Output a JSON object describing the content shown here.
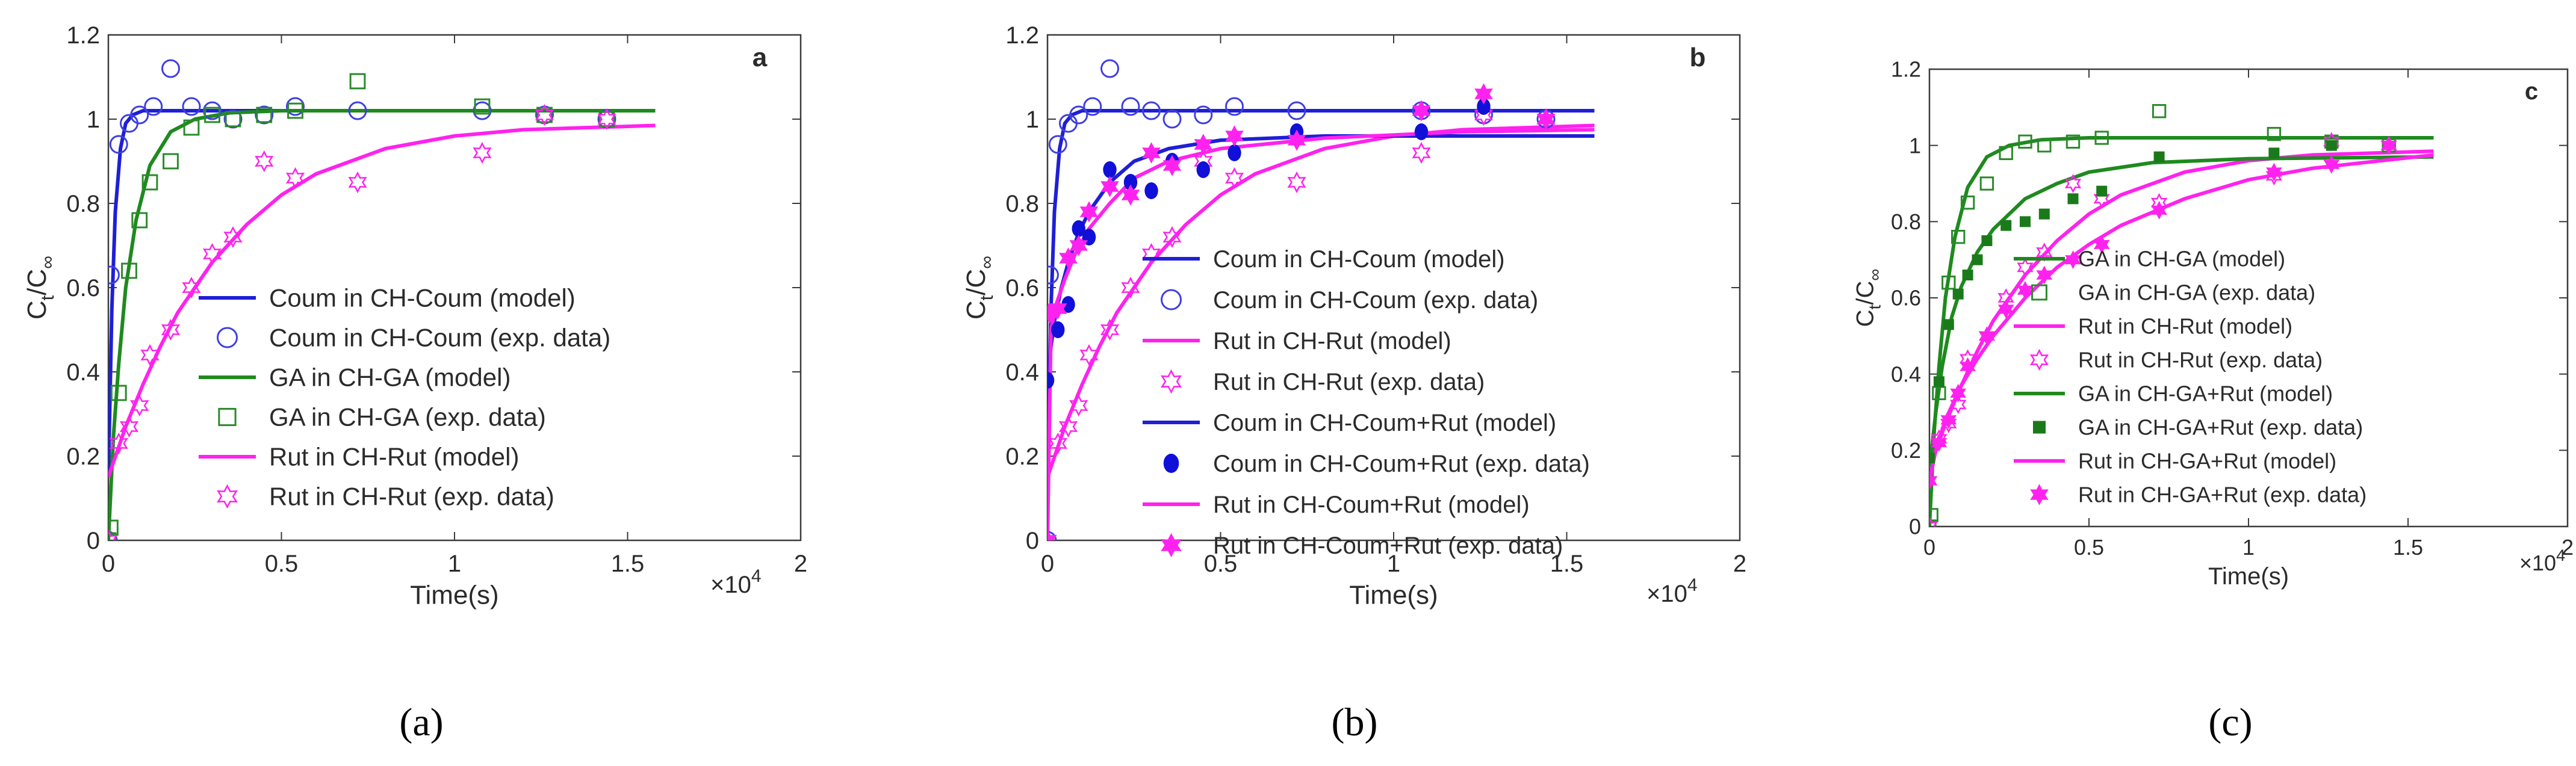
{
  "chart_data": [
    {
      "type": "line",
      "panel_label": "a",
      "caption": "(a)",
      "xlabel": "Time(s)",
      "ylabel": "C",
      "ylabel_sub_t": "t",
      "ylabel_slash": "/C",
      "ylabel_sub_inf": "∞",
      "x_multiplier": "×10",
      "x_multiplier_exp": "4",
      "xlim": [
        0,
        20000
      ],
      "ylim": [
        0,
        1.2
      ],
      "xticks": [
        0,
        5000,
        10000,
        15000,
        20000
      ],
      "xtick_labels": [
        "0",
        "0.5",
        "1",
        "1.5",
        "2"
      ],
      "yticks": [
        0,
        0.2,
        0.4,
        0.6,
        0.8,
        1.0,
        1.2
      ],
      "ytick_labels": [
        "0",
        "0.2",
        "0.4",
        "0.6",
        "0.8",
        "1",
        "1.2"
      ],
      "grid": false,
      "legend_position": "center-right",
      "series": [
        {
          "name": "Coum in CH-Coum (model)",
          "kind": "line",
          "color": "#1f1fd6",
          "x": [
            0,
            100,
            200,
            350,
            500,
            700,
            1000,
            1500,
            2500,
            5000,
            10000,
            15800
          ],
          "y": [
            0.15,
            0.55,
            0.78,
            0.93,
            0.99,
            1.01,
            1.02,
            1.02,
            1.02,
            1.02,
            1.02,
            1.02
          ]
        },
        {
          "name": "Coum in CH-Coum (exp. data)",
          "kind": "marker",
          "marker": "circle",
          "color": "#3f3fe0",
          "x": [
            0,
            60,
            300,
            600,
            900,
            1300,
            1800,
            2400,
            3000,
            3600,
            4500,
            5400,
            7200,
            10800,
            12600,
            14400
          ],
          "y": [
            0,
            0.63,
            0.94,
            0.99,
            1.01,
            1.03,
            1.12,
            1.03,
            1.02,
            1.0,
            1.01,
            1.03,
            1.02,
            1.02,
            1.01,
            1.0
          ]
        },
        {
          "name": "GA in CH-GA (model)",
          "kind": "line",
          "color": "#1e8a1e",
          "x": [
            0,
            150,
            300,
            500,
            800,
            1200,
            1800,
            2500,
            3500,
            5000,
            8000,
            15800
          ],
          "y": [
            0.0,
            0.25,
            0.42,
            0.6,
            0.76,
            0.89,
            0.97,
            1.0,
            1.015,
            1.02,
            1.02,
            1.02
          ]
        },
        {
          "name": "GA in CH-GA (exp. data)",
          "kind": "marker",
          "marker": "square",
          "color": "#2a8a2a",
          "x": [
            0,
            60,
            300,
            600,
            900,
            1200,
            1800,
            2400,
            3000,
            3600,
            4500,
            5400,
            7200,
            10800,
            12600,
            14400
          ],
          "y": [
            0.0,
            0.03,
            0.35,
            0.64,
            0.76,
            0.85,
            0.9,
            0.98,
            1.01,
            1.0,
            1.01,
            1.02,
            1.09,
            1.03,
            1.01,
            1.0
          ]
        },
        {
          "name": "Rut in CH-Rut (model)",
          "kind": "line",
          "color": "#ff22ee",
          "x": [
            0,
            500,
            1000,
            1500,
            2000,
            3000,
            4000,
            5000,
            6000,
            8000,
            10000,
            12000,
            15800
          ],
          "y": [
            0.15,
            0.27,
            0.37,
            0.46,
            0.54,
            0.66,
            0.75,
            0.82,
            0.87,
            0.93,
            0.96,
            0.975,
            0.985
          ]
        },
        {
          "name": "Rut in CH-Rut (exp. data)",
          "kind": "marker",
          "marker": "star",
          "color": "#ff22ee",
          "x": [
            0,
            300,
            600,
            900,
            1200,
            1800,
            2400,
            3000,
            3600,
            4500,
            5400,
            7200,
            10800,
            12600,
            14400
          ],
          "y": [
            0.0,
            0.23,
            0.27,
            0.32,
            0.44,
            0.5,
            0.6,
            0.68,
            0.72,
            0.9,
            0.86,
            0.85,
            0.92,
            1.01,
            1.0
          ]
        }
      ]
    },
    {
      "type": "line",
      "panel_label": "b",
      "caption": "(b)",
      "xlabel": "Time(s)",
      "ylabel": "C",
      "ylabel_sub_t": "t",
      "ylabel_slash": "/C",
      "ylabel_sub_inf": "∞",
      "x_multiplier": "×10",
      "x_multiplier_exp": "4",
      "xlim": [
        0,
        20000
      ],
      "ylim": [
        0,
        1.2
      ],
      "xticks": [
        0,
        5000,
        10000,
        15000,
        20000
      ],
      "xtick_labels": [
        "0",
        "0.5",
        "1",
        "1.5",
        "2"
      ],
      "yticks": [
        0,
        0.2,
        0.4,
        0.6,
        0.8,
        1.0,
        1.2
      ],
      "ytick_labels": [
        "0",
        "0.2",
        "0.4",
        "0.6",
        "0.8",
        "1",
        "1.2"
      ],
      "grid": false,
      "legend_position": "center-right",
      "series": [
        {
          "name": "Coum in CH-Coum (model)",
          "kind": "line",
          "color": "#1f1fd6",
          "x": [
            0,
            100,
            200,
            350,
            500,
            700,
            1000,
            1500,
            2500,
            5000,
            10000,
            15800
          ],
          "y": [
            0.15,
            0.55,
            0.78,
            0.93,
            0.99,
            1.01,
            1.02,
            1.02,
            1.02,
            1.02,
            1.02,
            1.02
          ]
        },
        {
          "name": "Coum in CH-Coum (exp. data)",
          "kind": "marker",
          "marker": "circle",
          "color": "#3f3fe0",
          "x": [
            0,
            60,
            300,
            600,
            900,
            1300,
            1800,
            2400,
            3000,
            3600,
            4500,
            5400,
            7200,
            10800,
            12600,
            14400
          ],
          "y": [
            0,
            0.63,
            0.94,
            0.99,
            1.01,
            1.03,
            1.12,
            1.03,
            1.02,
            1.0,
            1.01,
            1.03,
            1.02,
            1.02,
            1.01,
            1.0
          ]
        },
        {
          "name": "Rut in CH-Rut (model)",
          "kind": "line",
          "color": "#ff22ee",
          "x": [
            0,
            500,
            1000,
            1500,
            2000,
            3000,
            4000,
            5000,
            6000,
            8000,
            10000,
            12000,
            15800
          ],
          "y": [
            0.15,
            0.27,
            0.37,
            0.46,
            0.54,
            0.66,
            0.75,
            0.82,
            0.87,
            0.93,
            0.96,
            0.975,
            0.985
          ]
        },
        {
          "name": "Rut in CH-Rut (exp. data)",
          "kind": "marker",
          "marker": "star",
          "color": "#ff22ee",
          "x": [
            0,
            300,
            600,
            900,
            1200,
            1800,
            2400,
            3000,
            3600,
            4500,
            5400,
            7200,
            10800,
            12600,
            14400
          ],
          "y": [
            0.0,
            0.23,
            0.27,
            0.32,
            0.44,
            0.5,
            0.6,
            0.68,
            0.72,
            0.9,
            0.86,
            0.85,
            0.92,
            1.01,
            1.0
          ]
        },
        {
          "name": "Coum in CH-Coum+Rut (model)",
          "kind": "line",
          "color": "#1f1fd6",
          "x": [
            0,
            100,
            200,
            400,
            600,
            900,
            1200,
            1800,
            2500,
            3500,
            5000,
            8000,
            15800
          ],
          "y": [
            0.38,
            0.46,
            0.52,
            0.6,
            0.66,
            0.73,
            0.78,
            0.85,
            0.9,
            0.93,
            0.95,
            0.96,
            0.96
          ]
        },
        {
          "name": "Coum in CH-Coum+Rut (exp. data)",
          "kind": "marker",
          "marker": "dot",
          "color": "#1010d8",
          "x": [
            0,
            300,
            600,
            900,
            1200,
            1800,
            2400,
            3000,
            3600,
            4500,
            5400,
            7200,
            10800,
            12600
          ],
          "y": [
            0.38,
            0.5,
            0.56,
            0.74,
            0.72,
            0.88,
            0.85,
            0.83,
            0.9,
            0.88,
            0.92,
            0.97,
            0.97,
            1.03
          ]
        },
        {
          "name": "Rut in CH-Coum+Rut (model)",
          "kind": "line",
          "color": "#ff22ee",
          "x": [
            0,
            100,
            250,
            500,
            800,
            1200,
            1800,
            2500,
            3500,
            5000,
            8000,
            12000,
            15800
          ],
          "y": [
            0.0,
            0.5,
            0.56,
            0.62,
            0.68,
            0.74,
            0.8,
            0.86,
            0.9,
            0.93,
            0.955,
            0.97,
            0.975
          ]
        },
        {
          "name": "Rut in CH-Coum+Rut (exp. data)",
          "kind": "marker",
          "marker": "filledstar",
          "color": "#ff22ee",
          "x": [
            0,
            60,
            300,
            600,
            900,
            1200,
            1800,
            2400,
            3000,
            3600,
            4500,
            5400,
            7200,
            10800,
            12600,
            14400
          ],
          "y": [
            0.0,
            0.54,
            0.55,
            0.67,
            0.7,
            0.78,
            0.84,
            0.82,
            0.92,
            0.89,
            0.94,
            0.96,
            0.95,
            1.02,
            1.06,
            1.0
          ]
        }
      ]
    },
    {
      "type": "line",
      "panel_label": "c",
      "caption": "(c)",
      "xlabel": "Time(s)",
      "ylabel": "C",
      "ylabel_sub_t": "t",
      "ylabel_slash": "/C",
      "ylabel_sub_inf": "∞",
      "x_multiplier": "×10",
      "x_multiplier_exp": "4",
      "xlim": [
        0,
        20000
      ],
      "ylim": [
        0,
        1.2
      ],
      "xticks": [
        0,
        5000,
        10000,
        15000,
        20000
      ],
      "xtick_labels": [
        "0",
        "0.5",
        "1",
        "1.5",
        "2"
      ],
      "yticks": [
        0,
        0.2,
        0.4,
        0.6,
        0.8,
        1.0,
        1.2
      ],
      "ytick_labels": [
        "0",
        "0.2",
        "0.4",
        "0.6",
        "0.8",
        "1",
        "1.2"
      ],
      "grid": false,
      "legend_position": "center-right",
      "series": [
        {
          "name": "GA in CH-GA (model)",
          "kind": "line",
          "color": "#1e8a1e",
          "x": [
            0,
            150,
            300,
            500,
            800,
            1200,
            1800,
            2500,
            3500,
            5000,
            8000,
            15800
          ],
          "y": [
            0.0,
            0.25,
            0.42,
            0.6,
            0.76,
            0.89,
            0.97,
            1.0,
            1.015,
            1.02,
            1.02,
            1.02
          ]
        },
        {
          "name": "GA in CH-GA (exp. data)",
          "kind": "marker",
          "marker": "square",
          "color": "#2a8a2a",
          "x": [
            0,
            60,
            300,
            600,
            900,
            1200,
            1800,
            2400,
            3000,
            3600,
            4500,
            5400,
            7200,
            10800,
            12600,
            14400
          ],
          "y": [
            0.0,
            0.03,
            0.35,
            0.64,
            0.76,
            0.85,
            0.9,
            0.98,
            1.01,
            1.0,
            1.01,
            1.02,
            1.09,
            1.03,
            1.01,
            1.0
          ]
        },
        {
          "name": "Rut in CH-Rut (model)",
          "kind": "line",
          "color": "#ff22ee",
          "x": [
            0,
            500,
            1000,
            1500,
            2000,
            3000,
            4000,
            5000,
            6000,
            8000,
            10000,
            12000,
            15800
          ],
          "y": [
            0.15,
            0.27,
            0.37,
            0.46,
            0.54,
            0.66,
            0.75,
            0.82,
            0.87,
            0.93,
            0.96,
            0.975,
            0.985
          ]
        },
        {
          "name": "Rut in CH-Rut (exp. data)",
          "kind": "marker",
          "marker": "star",
          "color": "#ff22ee",
          "x": [
            0,
            300,
            600,
            900,
            1200,
            1800,
            2400,
            3000,
            3600,
            4500,
            5400,
            7200,
            10800,
            12600,
            14400
          ],
          "y": [
            0.0,
            0.23,
            0.27,
            0.32,
            0.44,
            0.5,
            0.6,
            0.68,
            0.72,
            0.9,
            0.86,
            0.85,
            0.92,
            1.01,
            1.0
          ]
        },
        {
          "name": "GA in CH-GA+Rut (model)",
          "kind": "line",
          "color": "#1e8a1e",
          "x": [
            0,
            200,
            400,
            700,
            1000,
            1500,
            2000,
            3000,
            4000,
            5000,
            7000,
            10000,
            15800
          ],
          "y": [
            0.15,
            0.3,
            0.42,
            0.55,
            0.63,
            0.72,
            0.78,
            0.86,
            0.9,
            0.93,
            0.955,
            0.965,
            0.97
          ]
        },
        {
          "name": "GA in CH-GA+Rut (exp. data)",
          "kind": "marker",
          "marker": "filledsquare",
          "color": "#1a7a1a",
          "x": [
            0,
            300,
            600,
            900,
            1200,
            1500,
            1800,
            2400,
            3000,
            3600,
            4500,
            5400,
            7200,
            10800,
            12600
          ],
          "y": [
            0.18,
            0.38,
            0.53,
            0.61,
            0.66,
            0.7,
            0.75,
            0.79,
            0.8,
            0.82,
            0.86,
            0.88,
            0.97,
            0.98,
            1.0
          ]
        },
        {
          "name": "Rut in CH-GA+Rut (model)",
          "kind": "line",
          "color": "#ff22ee",
          "x": [
            0,
            200,
            500,
            1000,
            1500,
            2000,
            3000,
            4000,
            5000,
            6000,
            8000,
            10000,
            12000,
            15800
          ],
          "y": [
            0.12,
            0.2,
            0.28,
            0.37,
            0.44,
            0.5,
            0.6,
            0.68,
            0.74,
            0.79,
            0.86,
            0.91,
            0.94,
            0.975
          ]
        },
        {
          "name": "Rut in CH-GA+Rut (exp. data)",
          "kind": "marker",
          "marker": "filledstar",
          "color": "#ff22ee",
          "x": [
            0,
            300,
            600,
            900,
            1200,
            1800,
            2400,
            3000,
            3600,
            4500,
            5400,
            7200,
            10800,
            12600,
            14400
          ],
          "y": [
            0.12,
            0.22,
            0.28,
            0.35,
            0.42,
            0.5,
            0.57,
            0.62,
            0.66,
            0.7,
            0.74,
            0.83,
            0.93,
            0.95,
            1.0
          ]
        }
      ]
    }
  ]
}
